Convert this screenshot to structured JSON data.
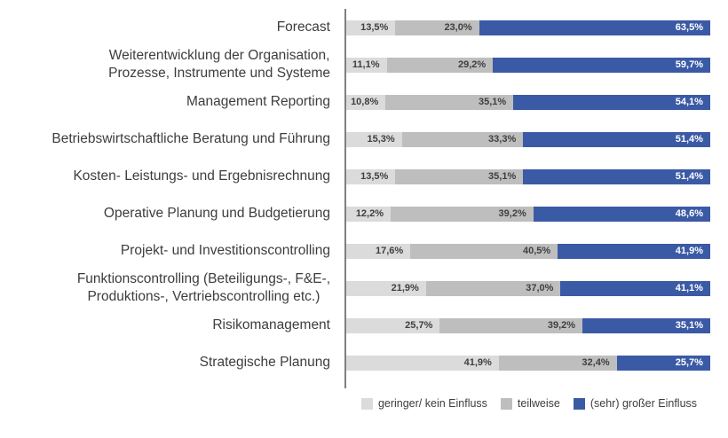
{
  "chart_data": {
    "type": "bar",
    "orientation": "horizontal",
    "stacked": true,
    "unit": "%",
    "xlim": [
      0,
      100
    ],
    "grid": false,
    "legend_position": "bottom",
    "axis_line_color": "#7f7f7f",
    "categories": [
      "Forecast",
      "Weiterentwicklung der Organisation,\nProzesse, Instrumente und Systeme",
      "Management Reporting",
      "Betriebswirtschaftliche Beratung und Führung",
      "Kosten- Leistungs- und Ergebnisrechnung",
      "Operative Planung und Budgetierung",
      "Projekt- und Investitionscontrolling",
      "Funktionscontrolling (Beteiligungs-, F&E-,\nProduktions-, Vertriebscontrolling etc.)",
      "Risikomanagement",
      "Strategische Planung"
    ],
    "series": [
      {
        "key": "geringer-kein-einfluss",
        "name": "geringer/ kein Einfluss",
        "color": "#dbdbdb",
        "value_color": "#3f3f3f",
        "values": [
          13.5,
          11.1,
          10.8,
          15.3,
          13.5,
          12.2,
          17.6,
          21.9,
          25.7,
          41.9
        ]
      },
      {
        "key": "teilweise",
        "name": "teilweise",
        "color": "#bebebe",
        "value_color": "#3f3f3f",
        "values": [
          23.0,
          29.2,
          35.1,
          33.3,
          35.1,
          39.2,
          40.5,
          37.0,
          39.2,
          32.4
        ]
      },
      {
        "key": "sehr-grosser-einfluss",
        "name": "(sehr) großer Einfluss",
        "color": "#3b5aa5",
        "value_color": "#ffffff",
        "values": [
          63.5,
          59.7,
          54.1,
          51.4,
          51.4,
          48.6,
          41.9,
          41.1,
          35.1,
          25.7
        ]
      }
    ],
    "value_labels": [
      [
        "13,5%",
        "23,0%",
        "63,5%"
      ],
      [
        "11,1%",
        "29,2%",
        "59,7%"
      ],
      [
        "10,8%",
        "35,1%",
        "54,1%"
      ],
      [
        "15,3%",
        "33,3%",
        "51,4%"
      ],
      [
        "13,5%",
        "35,1%",
        "51,4%"
      ],
      [
        "12,2%",
        "39,2%",
        "48,6%"
      ],
      [
        "17,6%",
        "40,5%",
        "41,9%"
      ],
      [
        "21,9%",
        "37,0%",
        "41,1%"
      ],
      [
        "25,7%",
        "39,2%",
        "35,1%"
      ],
      [
        "41,9%",
        "32,4%",
        "25,7%"
      ]
    ]
  }
}
